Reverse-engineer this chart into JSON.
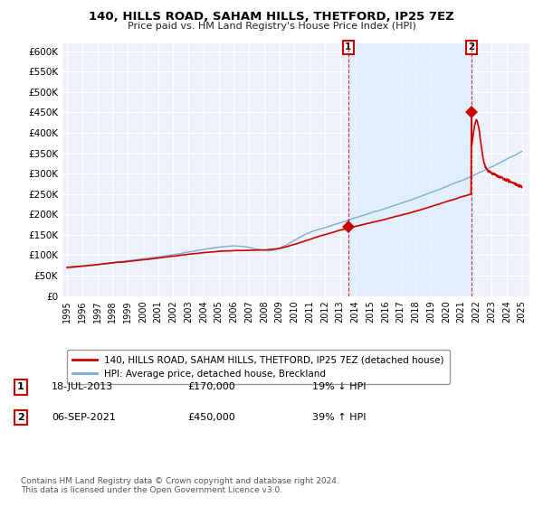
{
  "title": "140, HILLS ROAD, SAHAM HILLS, THETFORD, IP25 7EZ",
  "subtitle": "Price paid vs. HM Land Registry's House Price Index (HPI)",
  "legend_label_red": "140, HILLS ROAD, SAHAM HILLS, THETFORD, IP25 7EZ (detached house)",
  "legend_label_blue": "HPI: Average price, detached house, Breckland",
  "annotation1_date": "18-JUL-2013",
  "annotation1_price": "£170,000",
  "annotation1_pct": "19% ↓ HPI",
  "annotation2_date": "06-SEP-2021",
  "annotation2_price": "£450,000",
  "annotation2_pct": "39% ↑ HPI",
  "footnote": "Contains HM Land Registry data © Crown copyright and database right 2024.\nThis data is licensed under the Open Government Licence v3.0.",
  "red_color": "#cc0000",
  "blue_color": "#7aadcf",
  "shade_color": "#ddeeff",
  "background_color": "#edf2fa",
  "ylim": [
    0,
    620000
  ],
  "yticks": [
    0,
    50000,
    100000,
    150000,
    200000,
    250000,
    300000,
    350000,
    400000,
    450000,
    500000,
    550000,
    600000
  ],
  "ytick_labels": [
    "£0",
    "£50K",
    "£100K",
    "£150K",
    "£200K",
    "£250K",
    "£300K",
    "£350K",
    "£400K",
    "£450K",
    "£500K",
    "£550K",
    "£600K"
  ],
  "t1": 2013.55,
  "t2": 2021.68,
  "price1": 170000,
  "price2": 450000
}
